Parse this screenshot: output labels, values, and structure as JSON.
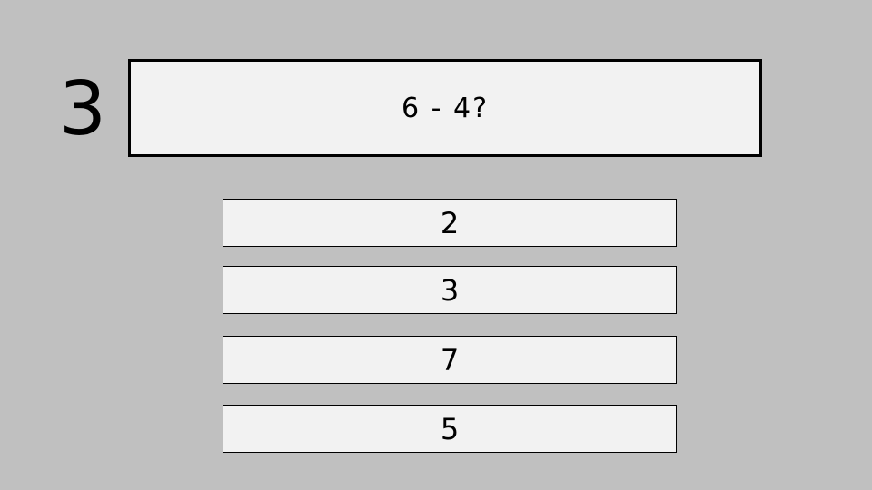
{
  "counter": "3",
  "question": "6 - 4?",
  "answers": [
    "2",
    "3",
    "7",
    "5"
  ],
  "colors": {
    "background": "#c0c0c0",
    "box": "#f2f2f2",
    "border": "#000000"
  }
}
